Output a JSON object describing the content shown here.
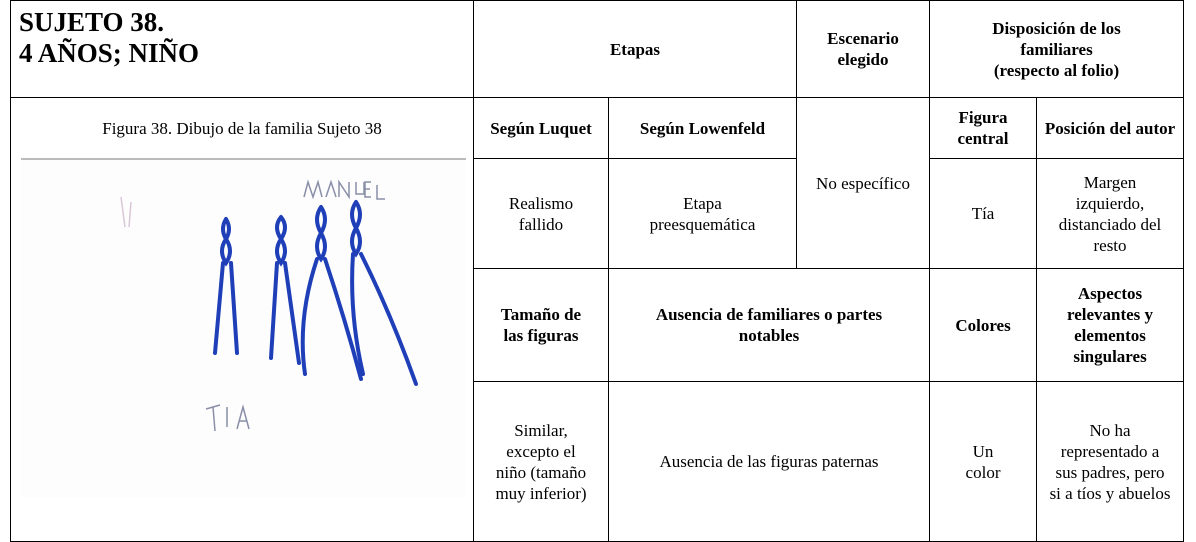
{
  "header": {
    "subject": "SUJETO 38.",
    "age_sex": "4 AÑOS; NIÑO"
  },
  "figure": {
    "caption": "Figura 38. Dibujo de la familia Sujeto 38"
  },
  "table": {
    "etapas": "Etapas",
    "escenario": "Escenario elegido",
    "disposicion": [
      "Disposición de los familiares",
      "(respecto al folio)"
    ],
    "luquet": "Según Luquet",
    "lowenfeld": "Según Lowenfeld",
    "escenario_value": "No específico",
    "figura_central": "Figura central",
    "posicion_autor": "Posición del autor",
    "luquet_value": "Realismo fallido",
    "lowenfeld_value": "Etapa preesquemática",
    "figura_central_value": "Tía",
    "posicion_autor_value": "Margen izquierdo, distanciado del resto",
    "tamano": "Tamaño de las figuras",
    "ausencia": "Ausencia de familiares o partes notables",
    "colores": "Colores",
    "aspectos": "Aspectos relevantes y elementos singulares",
    "tamano_value": "Similar, excepto el niño (tamaño muy inferior)",
    "ausencia_value": "Ausencia de las figuras paternas",
    "colores_value": "Un color",
    "aspectos_value": "No ha representado a sus padres, pero si a tíos y abuelos"
  }
}
